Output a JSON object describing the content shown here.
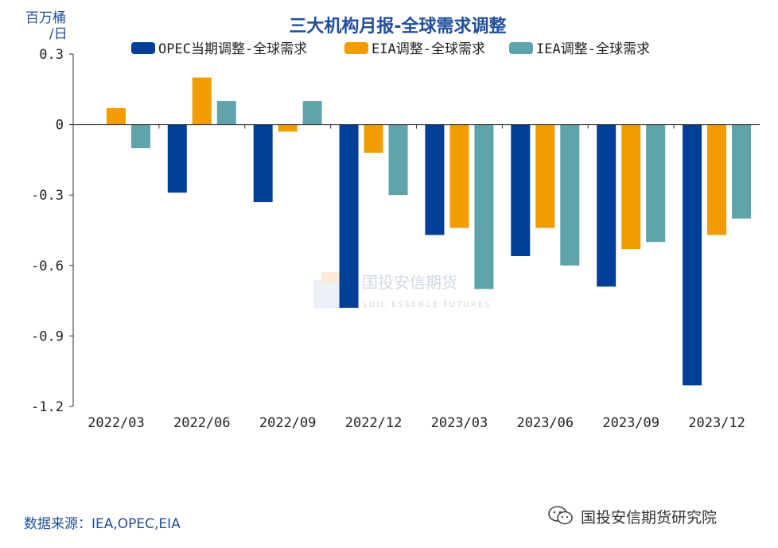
{
  "chart_data": {
    "type": "bar",
    "title": "三大机构月报-全球需求调整",
    "ylabel": "百万桶/日",
    "ylabel_line1": "百万桶",
    "ylabel_line2": "/日",
    "categories": [
      "2022/03",
      "2022/06",
      "2022/09",
      "2022/12",
      "2023/03",
      "2023/06",
      "2023/09",
      "2023/12"
    ],
    "series": [
      {
        "name": "OPEC当期调整-全球需求",
        "color": "#003f98",
        "values": [
          0,
          -0.29,
          -0.33,
          -0.78,
          -0.47,
          -0.56,
          -0.69,
          -1.11
        ]
      },
      {
        "name": "EIA调整-全球需求",
        "color": "#f39c00",
        "values": [
          0.07,
          0.2,
          -0.03,
          -0.12,
          -0.44,
          -0.44,
          -0.53,
          -0.47
        ]
      },
      {
        "name": "IEA调整-全球需求",
        "color": "#5fa3ab",
        "values": [
          -0.1,
          0.1,
          0.1,
          -0.3,
          -0.7,
          -0.6,
          -0.5,
          -0.4
        ]
      }
    ],
    "yticks": [
      0.3,
      0,
      -0.3,
      -0.6,
      -0.9,
      -1.2
    ],
    "ytick_labels": [
      "0.3",
      "0",
      "-0.3",
      "-0.6",
      "-0.9",
      "-1.2"
    ],
    "ylim": [
      -1.2,
      0.3
    ],
    "grid": false,
    "legend": "top"
  },
  "watermark": {
    "name": "国投安信期货",
    "sub": "SDIC ESSENCE FUTURES"
  },
  "footer": {
    "source": "数据来源：IEA,OPEC,EIA",
    "brand": "国投安信期货研究院"
  }
}
